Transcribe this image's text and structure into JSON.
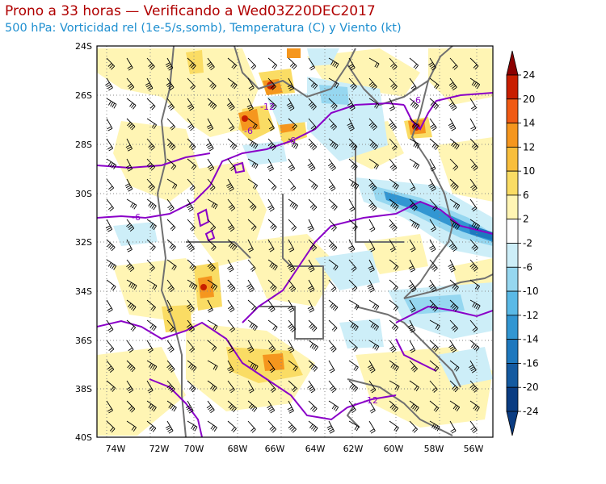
{
  "title": "Prono a 33 horas — Verificando a Wed03Z20DEC2017",
  "subtitle": "500 hPa: Vorticidad rel (1e-5/s,somb), Temperatura (C) y Viento (kt)",
  "axes": {
    "lat_labels": [
      "24S",
      "26S",
      "28S",
      "30S",
      "32S",
      "34S",
      "36S",
      "38S",
      "40S"
    ],
    "lon_labels": [
      "74W",
      "72W",
      "70W",
      "68W",
      "66W",
      "64W",
      "62W",
      "60W",
      "58W",
      "56W"
    ]
  },
  "colorbar": {
    "labels": [
      "24",
      "20",
      "14",
      "12",
      "10",
      "6",
      "2",
      "-2",
      "-6",
      "-10",
      "-12",
      "-14",
      "-16",
      "-20",
      "-24"
    ],
    "colors": [
      "#8b0000",
      "#c81e00",
      "#f05a14",
      "#f5961e",
      "#f8be3c",
      "#fadc64",
      "#fff5b4",
      "#ffffff",
      "#cdeef8",
      "#96d7f0",
      "#5ab9e6",
      "#3296d2",
      "#1e78be",
      "#145aa0",
      "#0a3c82",
      "#0a3c82"
    ]
  },
  "contour_labels": [
    "-6",
    "-6",
    "-6",
    "-6",
    "-12"
  ],
  "colors": {
    "temperature_contour": "#8a00c8",
    "border_lines": "#6e6e6e",
    "title": "#b00000",
    "subtitle": "#1e8fd0"
  }
}
